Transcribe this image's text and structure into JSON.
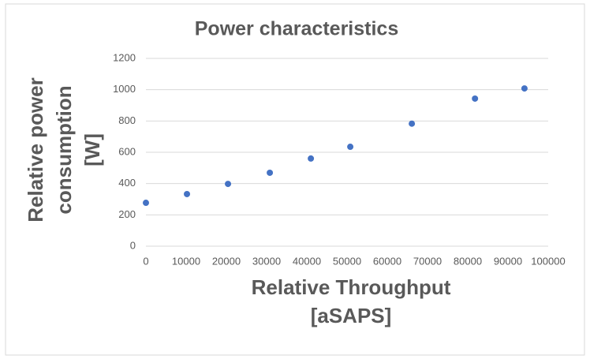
{
  "chart_data": {
    "type": "scatter",
    "title": "Power characteristics",
    "xlabel": [
      "Relative Throughput",
      "[aSAPS]"
    ],
    "ylabel": [
      "Relative power",
      "consumption",
      "[W]"
    ],
    "x": [
      0,
      10200,
      20400,
      30800,
      41000,
      50800,
      66100,
      81800,
      94100
    ],
    "values": [
      277,
      333,
      398,
      469,
      560,
      635,
      783,
      943,
      1008
    ],
    "color": "#4472c4",
    "xlim": [
      0,
      100000
    ],
    "xticks": [
      0,
      10000,
      20000,
      30000,
      40000,
      50000,
      60000,
      70000,
      80000,
      90000,
      100000
    ],
    "ylim": [
      0,
      1200
    ],
    "yticks": [
      0,
      200,
      400,
      600,
      800,
      1000,
      1200
    ],
    "grid": true
  }
}
